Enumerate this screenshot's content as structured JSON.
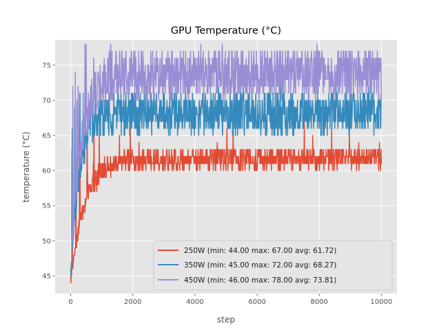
{
  "chart_data": {
    "type": "line",
    "title": "GPU Temperature (°C)",
    "xlabel": "step",
    "ylabel": "temperature (°C)",
    "xlim": [
      -500,
      10500
    ],
    "ylim": [
      42.5,
      78.6
    ],
    "xticks": [
      0,
      2000,
      4000,
      6000,
      8000,
      10000
    ],
    "xtick_labels": [
      "0",
      "2000",
      "4000",
      "6000",
      "8000",
      "10000"
    ],
    "yticks": [
      45,
      50,
      55,
      60,
      65,
      70,
      75
    ],
    "ytick_labels": [
      "45",
      "50",
      "55",
      "60",
      "65",
      "70",
      "75"
    ],
    "grid": true,
    "legend_position": "lower-right",
    "series": [
      {
        "name": "250W (min: 44.00 max: 67.00 avg: 61.72)",
        "color": "#e24a33",
        "steps": 10000,
        "min": 44,
        "max": 67,
        "avg": 61.72,
        "plateau": 61.72,
        "band_low": 60,
        "band_high": 63,
        "rise_tau": 450
      },
      {
        "name": "350W (min: 45.00 max: 72.00 avg: 68.27)",
        "color": "#348abd",
        "steps": 10000,
        "min": 45,
        "max": 72,
        "avg": 68.27,
        "plateau": 68.27,
        "band_low": 65,
        "band_high": 71,
        "rise_tau": 300
      },
      {
        "name": "450W (min: 46.00 max: 78.00 avg: 73.81)",
        "color": "#988ed5",
        "steps": 10000,
        "min": 46,
        "max": 78,
        "avg": 73.81,
        "plateau": 73.81,
        "band_low": 70,
        "band_high": 77,
        "rise_tau": 350
      }
    ]
  }
}
